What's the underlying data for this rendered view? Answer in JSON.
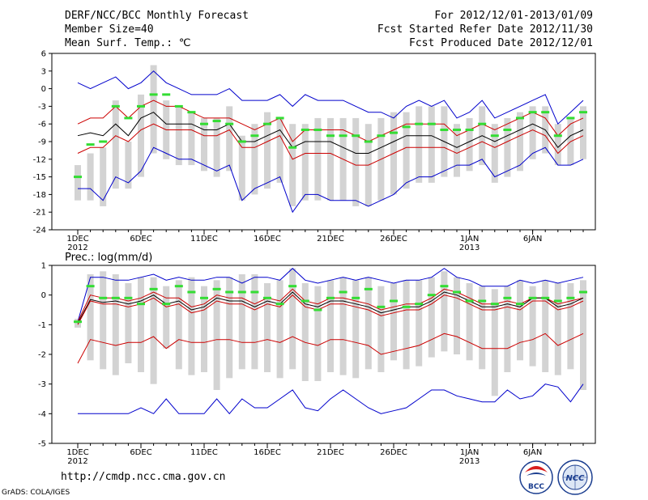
{
  "header": {
    "title": "DERF/NCC/BCC Monthly Forecast",
    "member_size": "Member Size=40",
    "variable": "Mean Surf. Temp.: ℃",
    "period": "For 2012/12/01-2013/01/09",
    "started": "Fcst Started Refer Date 2012/11/30",
    "produced": "Fcst Produced Date 2012/12/01"
  },
  "footer": {
    "url": "http://cmdp.ncc.cma.gov.cn",
    "credit": "GrADS: COLA/IGES"
  },
  "logos": {
    "left_text": "BCC",
    "right_text": "NCC"
  },
  "colors": {
    "envelope": "#0000cc",
    "spread": "#cc0000",
    "mean": "#000000",
    "box": "#d3d3d3",
    "median": "#33dd33"
  },
  "chart_data": [
    {
      "type": "line",
      "title": "Mean Surf. Temp.: ℃",
      "x_days": 40,
      "x_tick_labels": [
        {
          "day": 1,
          "label": "1DEC",
          "sub": "2012"
        },
        {
          "day": 6,
          "label": "6DEC",
          "sub": ""
        },
        {
          "day": 11,
          "label": "11DEC",
          "sub": ""
        },
        {
          "day": 16,
          "label": "16DEC",
          "sub": ""
        },
        {
          "day": 21,
          "label": "21DEC",
          "sub": ""
        },
        {
          "day": 26,
          "label": "26DEC",
          "sub": ""
        },
        {
          "day": 32,
          "label": "1JAN",
          "sub": "2013"
        },
        {
          "day": 37,
          "label": "6JAN",
          "sub": ""
        }
      ],
      "ylim": [
        -24,
        6
      ],
      "yticks": [
        "6",
        "3",
        "0",
        "-3",
        "-6",
        "-9",
        "-12",
        "-15",
        "-18",
        "-21",
        "-24"
      ],
      "ytick_values": [
        6,
        3,
        0,
        -3,
        -6,
        -9,
        -12,
        -15,
        -18,
        -21,
        -24
      ],
      "series": [
        {
          "name": "max",
          "color": "#0000cc",
          "values": [
            1,
            0,
            1,
            2,
            0,
            1,
            3,
            1,
            0,
            -1,
            -1,
            -1,
            0,
            -2,
            -2,
            -2,
            -1,
            -3,
            -1,
            -2,
            -2,
            -2,
            -3,
            -4,
            -4,
            -5,
            -3,
            -2,
            -3,
            -2,
            -5,
            -4,
            -2,
            -5,
            -4,
            -3,
            -2,
            -1,
            -6,
            -4,
            -2
          ]
        },
        {
          "name": "upper",
          "color": "#cc0000",
          "values": [
            -6,
            -5,
            -5,
            -3,
            -5,
            -3,
            -2,
            -3,
            -3,
            -4,
            -5,
            -5,
            -5,
            -6,
            -7,
            -6,
            -5,
            -9,
            -7,
            -7,
            -7,
            -7,
            -8,
            -9,
            -8,
            -7,
            -6,
            -6,
            -6,
            -6,
            -8,
            -7,
            -6,
            -7,
            -6,
            -5,
            -4,
            -5,
            -8,
            -6,
            -5
          ]
        },
        {
          "name": "mean",
          "color": "#000000",
          "values": [
            -8,
            -7.5,
            -8,
            -6,
            -8,
            -5,
            -4,
            -6,
            -6,
            -6,
            -7,
            -7,
            -6,
            -9,
            -9,
            -8,
            -7,
            -10,
            -9,
            -9,
            -9,
            -10,
            -11,
            -11,
            -10,
            -9,
            -8,
            -8,
            -8,
            -9,
            -10,
            -9,
            -8,
            -9,
            -8,
            -7,
            -6,
            -7,
            -10,
            -8,
            -7
          ]
        },
        {
          "name": "lower",
          "color": "#cc0000",
          "values": [
            -11,
            -10,
            -10,
            -8,
            -9,
            -7,
            -6,
            -7,
            -7,
            -7,
            -8,
            -8,
            -7,
            -10,
            -10,
            -9,
            -8,
            -12,
            -11,
            -11,
            -11,
            -12,
            -13,
            -13,
            -12,
            -11,
            -10,
            -10,
            -10,
            -10,
            -11,
            -10,
            -9,
            -10,
            -9,
            -8,
            -7,
            -8,
            -11,
            -9,
            -8
          ]
        },
        {
          "name": "min",
          "color": "#0000cc",
          "values": [
            -17,
            -17,
            -19,
            -15,
            -16,
            -14,
            -10,
            -11,
            -12,
            -12,
            -13,
            -14,
            -13,
            -19,
            -17,
            -16,
            -15,
            -21,
            -18,
            -18,
            -19,
            -19,
            -19,
            -20,
            -19,
            -18,
            -16,
            -15,
            -15,
            -14,
            -13,
            -13,
            -12,
            -15,
            -14,
            -13,
            -11,
            -10,
            -13,
            -13,
            -12
          ]
        }
      ],
      "box_low": [
        -19,
        -19,
        -20,
        -17,
        -17,
        -15,
        -11,
        -12,
        -13,
        -13,
        -14,
        -15,
        -14,
        -19,
        -18,
        -17,
        -16,
        -20,
        -19,
        -19,
        -19,
        -19,
        -20,
        -20,
        -19,
        -18,
        -17,
        -16,
        -16,
        -15,
        -15,
        -14,
        -13,
        -16,
        -15,
        -14,
        -12,
        -11,
        -13,
        -13,
        -12
      ],
      "box_high": [
        -13,
        -11,
        -10,
        -2,
        -9,
        -1,
        4,
        -2,
        -3,
        -4,
        -5,
        -5,
        -3,
        -8,
        -6,
        -4,
        -5,
        -6,
        -6,
        -5,
        -5,
        -5,
        -5,
        -6,
        -5,
        -4,
        -4,
        -3,
        -3,
        -3,
        -6,
        -5,
        -3,
        -6,
        -5,
        -4,
        -3,
        -3,
        -6,
        -5,
        -3
      ],
      "median": [
        -15,
        -9.5,
        -9,
        -3,
        -5,
        -3,
        -1,
        -1,
        -3,
        -4,
        -6,
        -5.5,
        -6,
        -9,
        -8,
        -6,
        -5,
        -10,
        -7,
        -7,
        -8,
        -8,
        -8,
        -9,
        -8,
        -7.5,
        -6.5,
        -6,
        -6,
        -7,
        -7,
        -7,
        -6,
        -8,
        -7,
        -5,
        -4,
        -4,
        -8,
        -5,
        -4
      ]
    },
    {
      "type": "line",
      "title": "Prec.: log(mm/d)",
      "x_days": 40,
      "x_tick_labels": [
        {
          "day": 1,
          "label": "1DEC",
          "sub": "2012"
        },
        {
          "day": 6,
          "label": "6DEC",
          "sub": ""
        },
        {
          "day": 11,
          "label": "11DEC",
          "sub": ""
        },
        {
          "day": 16,
          "label": "16DEC",
          "sub": ""
        },
        {
          "day": 21,
          "label": "21DEC",
          "sub": ""
        },
        {
          "day": 26,
          "label": "26DEC",
          "sub": ""
        },
        {
          "day": 32,
          "label": "1JAN",
          "sub": "2013"
        },
        {
          "day": 37,
          "label": "6JAN",
          "sub": ""
        }
      ],
      "ylim": [
        -5,
        1
      ],
      "yticks": [
        "1",
        "0",
        "-1",
        "-2",
        "-3",
        "-4",
        "-5"
      ],
      "ytick_values": [
        1,
        0,
        -1,
        -2,
        -3,
        -4,
        -5
      ],
      "series": [
        {
          "name": "max",
          "color": "#0000cc",
          "values": [
            -0.9,
            0.6,
            0.6,
            0.5,
            0.5,
            0.6,
            0.7,
            0.5,
            0.6,
            0.5,
            0.5,
            0.6,
            0.6,
            0.4,
            0.6,
            0.6,
            0.5,
            0.9,
            0.5,
            0.4,
            0.5,
            0.6,
            0.5,
            0.6,
            0.5,
            0.4,
            0.5,
            0.5,
            0.6,
            0.9,
            0.6,
            0.5,
            0.3,
            0.3,
            0.3,
            0.5,
            0.4,
            0.5,
            0.4,
            0.5,
            0.6
          ]
        },
        {
          "name": "upper",
          "color": "#cc0000",
          "values": [
            -0.9,
            0,
            -0.1,
            -0.1,
            -0.2,
            -0.1,
            0.1,
            -0.1,
            -0.1,
            -0.4,
            -0.3,
            0,
            -0.1,
            -0.1,
            -0.3,
            -0.1,
            -0.2,
            0.2,
            -0.2,
            -0.3,
            -0.1,
            -0.1,
            -0.2,
            -0.3,
            -0.5,
            -0.4,
            -0.3,
            -0.3,
            -0.1,
            0.2,
            0.1,
            -0.1,
            -0.3,
            -0.3,
            -0.2,
            -0.3,
            -0.1,
            -0.1,
            -0.3,
            -0.2,
            -0.1
          ]
        },
        {
          "name": "mean",
          "color": "#000000",
          "values": [
            -0.95,
            -0.15,
            -0.25,
            -0.2,
            -0.3,
            -0.2,
            0,
            -0.3,
            -0.2,
            -0.5,
            -0.4,
            -0.1,
            -0.2,
            -0.2,
            -0.4,
            -0.2,
            -0.3,
            0.1,
            -0.3,
            -0.4,
            -0.2,
            -0.2,
            -0.3,
            -0.4,
            -0.6,
            -0.5,
            -0.4,
            -0.4,
            -0.2,
            0.1,
            0,
            -0.2,
            -0.4,
            -0.4,
            -0.3,
            -0.4,
            -0.1,
            -0.1,
            -0.4,
            -0.3,
            -0.1
          ]
        },
        {
          "name": "lower",
          "color": "#cc0000",
          "values": [
            -1,
            -0.2,
            -0.3,
            -0.3,
            -0.4,
            -0.3,
            -0.1,
            -0.4,
            -0.3,
            -0.6,
            -0.5,
            -0.2,
            -0.3,
            -0.3,
            -0.5,
            -0.3,
            -0.4,
            0,
            -0.4,
            -0.5,
            -0.3,
            -0.3,
            -0.4,
            -0.5,
            -0.7,
            -0.6,
            -0.5,
            -0.5,
            -0.3,
            0,
            -0.1,
            -0.3,
            -0.5,
            -0.5,
            -0.4,
            -0.5,
            -0.2,
            -0.2,
            -0.5,
            -0.4,
            -0.2
          ]
        },
        {
          "name": "spread_low",
          "color": "#cc0000",
          "values": [
            -2.3,
            -1.5,
            -1.6,
            -1.7,
            -1.6,
            -1.6,
            -1.4,
            -1.8,
            -1.5,
            -1.6,
            -1.6,
            -1.5,
            -1.5,
            -1.6,
            -1.6,
            -1.5,
            -1.6,
            -1.4,
            -1.6,
            -1.7,
            -1.5,
            -1.5,
            -1.6,
            -1.7,
            -2,
            -1.9,
            -1.8,
            -1.7,
            -1.5,
            -1.3,
            -1.4,
            -1.6,
            -1.8,
            -1.8,
            -1.8,
            -1.6,
            -1.5,
            -1.3,
            -1.7,
            -1.5,
            -1.3
          ]
        },
        {
          "name": "min",
          "color": "#0000cc",
          "values": [
            -4,
            -4,
            -4,
            -4,
            -4,
            -3.8,
            -4,
            -3.5,
            -4,
            -4,
            -4,
            -3.5,
            -4,
            -3.5,
            -3.8,
            -3.8,
            -3.5,
            -3.2,
            -3.8,
            -3.9,
            -3.5,
            -3.2,
            -3.5,
            -3.8,
            -4,
            -3.9,
            -3.8,
            -3.5,
            -3.2,
            -3.2,
            -3.4,
            -3.5,
            -3.6,
            -3.6,
            -3.2,
            -3.5,
            -3.4,
            -3,
            -3.1,
            -3.6,
            -3
          ]
        }
      ],
      "box_low": [
        -1.1,
        -2.2,
        -2.5,
        -2.7,
        -2.3,
        -2.6,
        -3,
        -1.8,
        -2.5,
        -2.7,
        -2.6,
        -3.2,
        -2.8,
        -2.5,
        -2.5,
        -2.6,
        -2.8,
        -2.5,
        -2.9,
        -2.9,
        -2.6,
        -2.7,
        -2.8,
        -2.5,
        -2.6,
        -2.2,
        -2.5,
        -2.4,
        -2.1,
        -1.9,
        -2,
        -2.2,
        -2.5,
        -3.4,
        -2.6,
        -2.2,
        -2.4,
        -2.6,
        -2.7,
        -2.5,
        -3.2
      ],
      "box_high": [
        -0.8,
        0.7,
        0.8,
        0.7,
        0.4,
        0.6,
        0.6,
        0.3,
        0.5,
        0.6,
        0.3,
        0.5,
        0.6,
        0.7,
        0.7,
        0.4,
        0.5,
        0.9,
        0.4,
        0.3,
        0.5,
        0.6,
        0.5,
        0.6,
        0.3,
        0.4,
        0.5,
        0.5,
        0.6,
        0.8,
        0.6,
        0.4,
        0.3,
        0.2,
        0.3,
        0.5,
        0.3,
        0.5,
        0.4,
        0.4,
        0.5
      ],
      "median": [
        -0.9,
        0.3,
        -0.1,
        -0.1,
        -0.1,
        -0.3,
        0.2,
        -0.3,
        0.3,
        0.1,
        -0.1,
        0.2,
        0.1,
        0.1,
        0.1,
        -0.1,
        -0.3,
        0.3,
        -0.2,
        -0.5,
        -0.1,
        0.1,
        -0.1,
        0.2,
        -0.4,
        -0.2,
        -0.4,
        -0.3,
        0,
        0.3,
        0.1,
        -0.2,
        -0.2,
        -0.3,
        -0.1,
        -0.3,
        -0.1,
        -0.1,
        -0.2,
        -0.1,
        0.1
      ]
    }
  ]
}
